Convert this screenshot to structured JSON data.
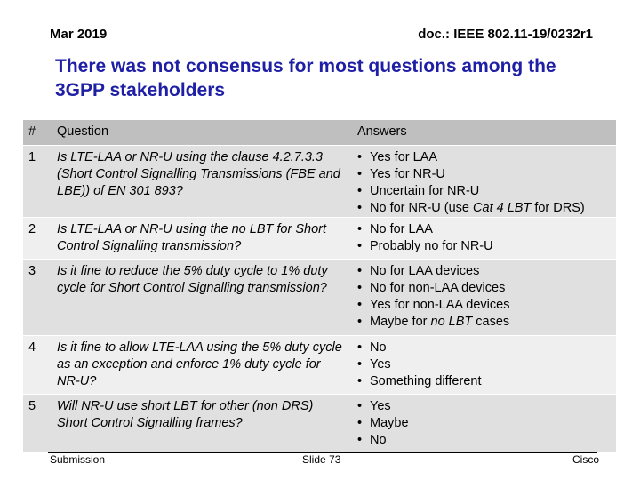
{
  "header": {
    "date": "Mar 2019",
    "doc": "doc.: IEEE 802.11-19/0232r1"
  },
  "title": "There was not consensus for most questions among the 3GPP stakeholders",
  "table": {
    "headers": {
      "num": "#",
      "question": "Question",
      "answers": "Answers"
    },
    "rows": [
      {
        "num": "1",
        "question": "Is LTE-LAA or NR-U using the clause 4.2.7.3.3 (Short Control Signalling Transmissions (FBE and LBE)) of EN 301 893?",
        "answers": [
          {
            "pre": "Yes for LAA",
            "em": "",
            "post": ""
          },
          {
            "pre": "Yes for NR-U",
            "em": "",
            "post": ""
          },
          {
            "pre": "Uncertain for NR-U",
            "em": "",
            "post": ""
          },
          {
            "pre": "No for NR-U (use ",
            "em": "Cat 4 LBT",
            "post": " for DRS)"
          }
        ]
      },
      {
        "num": "2",
        "question": "Is LTE-LAA or NR-U using the no LBT for Short Control Signalling transmission?",
        "answers": [
          {
            "pre": "No for LAA",
            "em": "",
            "post": ""
          },
          {
            "pre": "Probably no for NR-U",
            "em": "",
            "post": ""
          }
        ]
      },
      {
        "num": "3",
        "question": "Is it fine to reduce the 5% duty cycle to 1% duty cycle for Short Control Signalling transmission?",
        "answers": [
          {
            "pre": "No for LAA devices",
            "em": "",
            "post": ""
          },
          {
            "pre": "No for non-LAA devices",
            "em": "",
            "post": ""
          },
          {
            "pre": "Yes for non-LAA devices",
            "em": "",
            "post": ""
          },
          {
            "pre": "Maybe for ",
            "em": "no LBT",
            "post": " cases"
          }
        ]
      },
      {
        "num": "4",
        "question": "Is it fine to allow LTE-LAA using the 5% duty cycle as an exception and enforce 1% duty cycle for NR-U?",
        "answers": [
          {
            "pre": "No",
            "em": "",
            "post": ""
          },
          {
            "pre": "Yes",
            "em": "",
            "post": ""
          },
          {
            "pre": "Something different",
            "em": "",
            "post": ""
          }
        ]
      },
      {
        "num": "5",
        "question": "Will NR-U use short LBT for other (non DRS) Short Control Signalling frames?",
        "answers": [
          {
            "pre": "Yes",
            "em": "",
            "post": ""
          },
          {
            "pre": "Maybe",
            "em": "",
            "post": ""
          },
          {
            "pre": "No",
            "em": "",
            "post": ""
          }
        ]
      }
    ]
  },
  "footer": {
    "left": "Submission",
    "center": "Slide 73",
    "right": "Cisco"
  }
}
